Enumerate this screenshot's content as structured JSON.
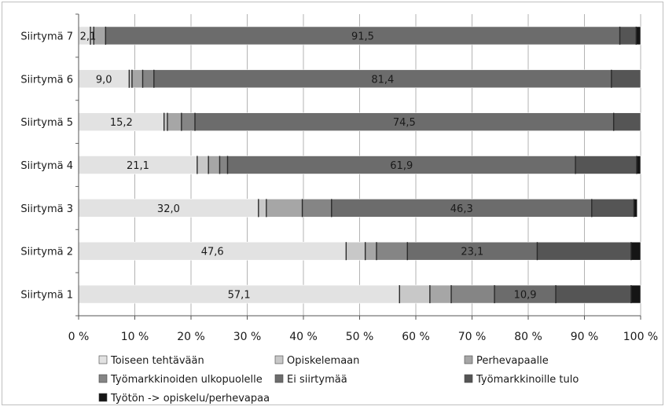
{
  "chart_data": {
    "type": "bar",
    "orientation": "horizontal",
    "stacked": "percent",
    "title": "",
    "xlabel": "",
    "ylabel": "",
    "xlim": [
      0,
      100
    ],
    "x_ticks": [
      0,
      10,
      20,
      30,
      40,
      50,
      60,
      70,
      80,
      90,
      100
    ],
    "x_tick_suffix": " %",
    "grid": true,
    "legend_position": "bottom",
    "categories": [
      "Siirtymä 7",
      "Siirtymä 6",
      "Siirtymä 5",
      "Siirtymä 4",
      "Siirtymä 3",
      "Siirtymä 2",
      "Siirtymä 1"
    ],
    "series": [
      {
        "name": "Toiseen tehtävään",
        "color": "#e2e2e2",
        "values": [
          2.1,
          9.0,
          15.2,
          21.1,
          32.0,
          47.6,
          57.1
        ]
      },
      {
        "name": "Opiskelemaan",
        "color": "#c8c8c8",
        "values": [
          0.6,
          0.5,
          0.6,
          2.0,
          1.4,
          3.4,
          5.4
        ]
      },
      {
        "name": "Perhevapaalle",
        "color": "#a6a6a6",
        "values": [
          2.1,
          1.9,
          2.5,
          2.0,
          6.4,
          2.0,
          3.8
        ]
      },
      {
        "name": "Työmarkkinoiden ulkopuolelle",
        "color": "#858585",
        "values": [
          0.0,
          2.0,
          2.4,
          1.4,
          5.2,
          5.5,
          7.7
        ]
      },
      {
        "name": "Ei siirtymää",
        "color": "#6c6c6c",
        "values": [
          91.5,
          81.4,
          74.5,
          61.9,
          46.3,
          23.1,
          10.9
        ]
      },
      {
        "name": "Työmarkkinoille tulo",
        "color": "#555555",
        "values": [
          2.9,
          5.2,
          4.8,
          10.9,
          7.5,
          16.7,
          13.4
        ]
      },
      {
        "name": "Työtön -> opiskelu/perhevapaa",
        "color": "#151515",
        "values": [
          0.8,
          0.0,
          0.0,
          0.7,
          0.6,
          1.7,
          1.7
        ]
      }
    ],
    "data_labels": {
      "Siirtymä 7": [
        "2,1",
        "91,5"
      ],
      "Siirtymä 6": [
        "9,0",
        "81,4"
      ],
      "Siirtymä 5": [
        "15,2",
        "74,5"
      ],
      "Siirtymä 4": [
        "21,1",
        "61,9"
      ],
      "Siirtymä 3": [
        "32,0",
        "46,3"
      ],
      "Siirtymä 2": [
        "47,6",
        "23,1"
      ],
      "Siirtymä 1": [
        "57,1",
        "10,9"
      ]
    }
  }
}
